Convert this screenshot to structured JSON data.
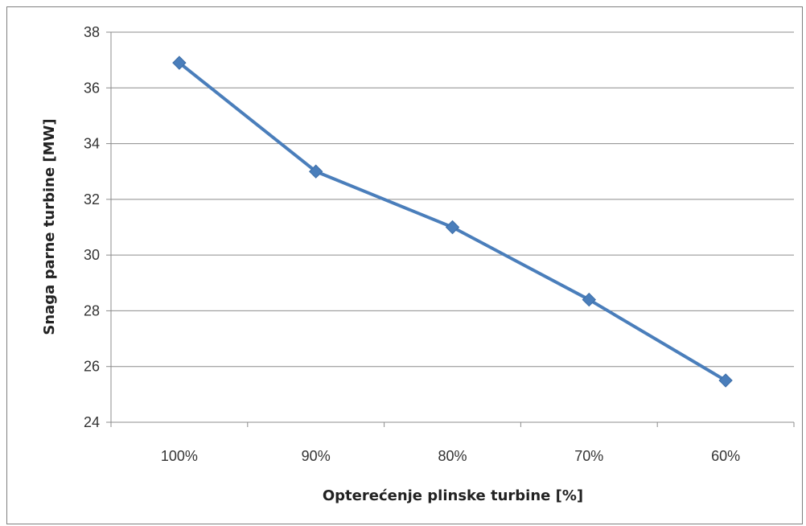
{
  "chart_data": {
    "type": "line",
    "categories": [
      "100%",
      "90%",
      "80%",
      "70%",
      "60%"
    ],
    "series": [
      {
        "values": [
          36.9,
          33.0,
          31.0,
          28.4,
          25.5
        ],
        "color": "#4a7ebb",
        "marker": "diamond"
      }
    ],
    "xlabel": "Opterećenje plinske turbine [%]",
    "ylabel": "Snaga parne turbine [MW]",
    "ylim": [
      24,
      38
    ],
    "yticks": [
      24,
      26,
      28,
      30,
      32,
      34,
      36,
      38
    ],
    "grid": "horizontal",
    "legend": "none"
  }
}
